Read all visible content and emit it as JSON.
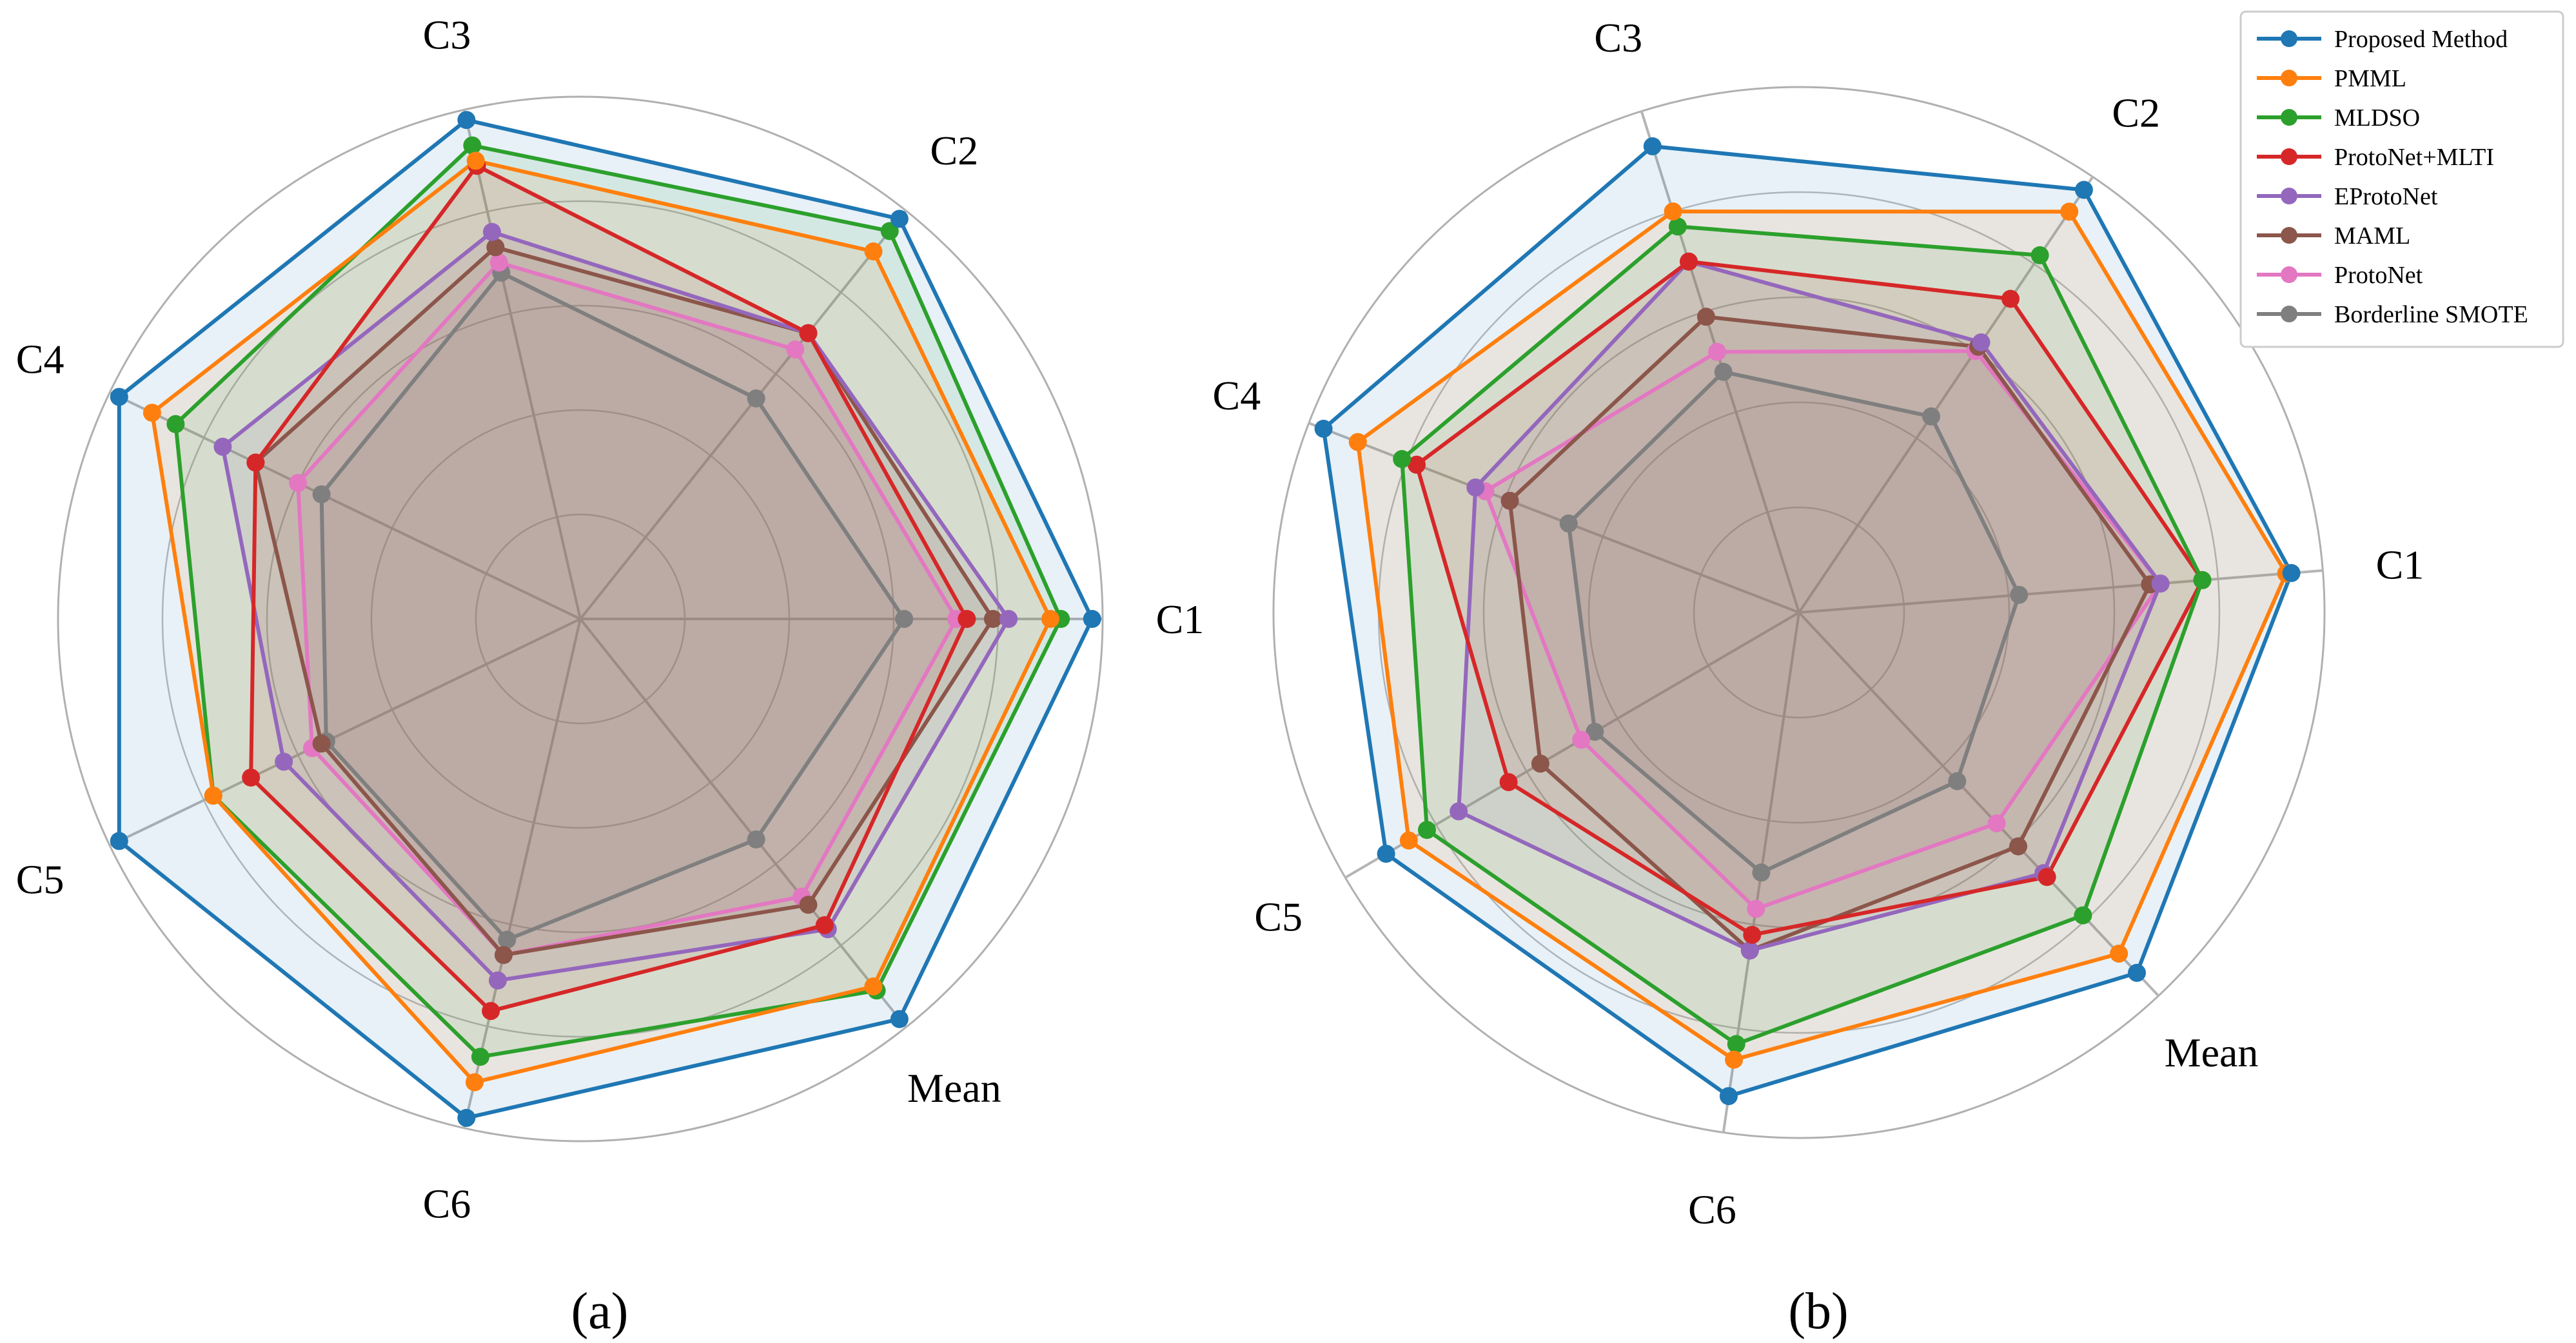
{
  "chart_data": [
    {
      "type": "radar",
      "panel_label": "(a)",
      "axes": [
        "C1",
        "C2",
        "C3",
        "C4",
        "C5",
        "C6",
        "Mean"
      ],
      "rlim": [
        0,
        1.0
      ],
      "grid": true,
      "series": [
        {
          "name": "Proposed Method",
          "color": "#1f77b4",
          "values": [
            0.98,
            0.98,
            0.98,
            0.98,
            0.98,
            0.98,
            0.98
          ]
        },
        {
          "name": "PMML",
          "color": "#ff7f0e",
          "values": [
            0.9,
            0.9,
            0.9,
            0.91,
            0.78,
            0.91,
            0.9
          ]
        },
        {
          "name": "MLDSO",
          "color": "#2ca02c",
          "values": [
            0.92,
            0.95,
            0.93,
            0.86,
            0.78,
            0.86,
            0.91
          ]
        },
        {
          "name": "ProtoNet+MLTI",
          "color": "#d62728",
          "values": [
            0.74,
            0.7,
            0.89,
            0.69,
            0.7,
            0.77,
            0.75
          ]
        },
        {
          "name": "EProtoNet",
          "color": "#9467bd",
          "values": [
            0.82,
            0.7,
            0.76,
            0.76,
            0.63,
            0.71,
            0.76
          ]
        },
        {
          "name": "MAML",
          "color": "#8c564b",
          "values": [
            0.79,
            0.7,
            0.73,
            0.69,
            0.55,
            0.66,
            0.7
          ]
        },
        {
          "name": "ProtoNet",
          "color": "#e377c2",
          "values": [
            0.72,
            0.66,
            0.7,
            0.6,
            0.57,
            0.66,
            0.68
          ]
        },
        {
          "name": "Borderline SMOTE",
          "color": "#7f7f7f",
          "values": [
            0.62,
            0.54,
            0.68,
            0.55,
            0.54,
            0.63,
            0.54
          ]
        }
      ]
    },
    {
      "type": "radar",
      "panel_label": "(b)",
      "axes": [
        "C1",
        "C2",
        "C3",
        "C4",
        "C5",
        "C6",
        "Mean"
      ],
      "rlim": [
        0,
        1.0
      ],
      "grid": true,
      "series": [
        {
          "name": "Proposed Method",
          "color": "#1f77b4",
          "values": [
            0.94,
            0.97,
            0.93,
            0.97,
            0.91,
            0.93,
            0.94
          ]
        },
        {
          "name": "PMML",
          "color": "#ff7f0e",
          "values": [
            0.93,
            0.92,
            0.8,
            0.9,
            0.86,
            0.86,
            0.89
          ]
        },
        {
          "name": "MLDSO",
          "color": "#2ca02c",
          "values": [
            0.77,
            0.82,
            0.77,
            0.81,
            0.82,
            0.83,
            0.79
          ]
        },
        {
          "name": "ProtoNet+MLTI",
          "color": "#d62728",
          "values": [
            0.77,
            0.72,
            0.7,
            0.78,
            0.64,
            0.62,
            0.69
          ]
        },
        {
          "name": "EProtoNet",
          "color": "#9467bd",
          "values": [
            0.69,
            0.62,
            0.7,
            0.66,
            0.75,
            0.65,
            0.68
          ]
        },
        {
          "name": "MAML",
          "color": "#8c564b",
          "values": [
            0.67,
            0.61,
            0.59,
            0.59,
            0.57,
            0.65,
            0.61
          ]
        },
        {
          "name": "ProtoNet",
          "color": "#e377c2",
          "values": [
            0.69,
            0.6,
            0.52,
            0.64,
            0.48,
            0.57,
            0.55
          ]
        },
        {
          "name": "Borderline SMOTE",
          "color": "#7f7f7f",
          "values": [
            0.42,
            0.45,
            0.48,
            0.47,
            0.45,
            0.5,
            0.44
          ]
        }
      ]
    }
  ]
}
